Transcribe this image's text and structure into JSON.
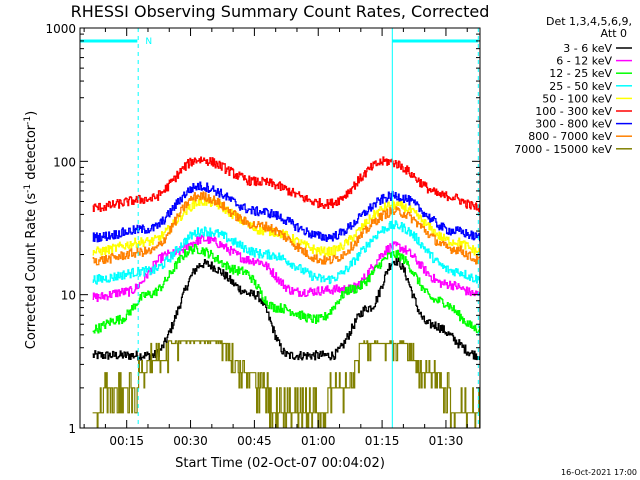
{
  "chart_data": {
    "type": "line",
    "title": "RHESSI Observing Summary Count Rates, Corrected",
    "xlabel": "Start Time (02-Oct-07 00:04:02)",
    "ylabel": "Corrected Count Rate",
    "yscale": "log",
    "ylim": [
      1,
      1000
    ],
    "xlim_minutes": [
      4.03,
      98
    ],
    "x_ticks": [
      {
        "t": 15,
        "label": "00:15"
      },
      {
        "t": 30,
        "label": "00:30"
      },
      {
        "t": 45,
        "label": "00:45"
      },
      {
        "t": 60,
        "label": "01:00"
      },
      {
        "t": 75,
        "label": "01:15"
      },
      {
        "t": 90,
        "label": "01:30"
      }
    ],
    "y_ticks": [
      {
        "v": 1,
        "label": "1"
      },
      {
        "v": 10,
        "label": "10"
      },
      {
        "v": 100,
        "label": "100"
      },
      {
        "v": 1000,
        "label": "1000"
      }
    ],
    "legend_title_line1": "Det 1,3,4,5,6,9,",
    "legend_title_line2": "Att 0",
    "legend_position": "top-right, outside plot",
    "series": [
      {
        "name": "3 - 6 keV",
        "color": "#000000",
        "t": [
          7,
          21,
          33,
          45,
          53,
          63,
          72,
          78,
          86,
          98
        ],
        "values": [
          3.5,
          3.5,
          17,
          10,
          3.5,
          3.5,
          8,
          18,
          6,
          3.5
        ]
      },
      {
        "name": "6 - 12 keV",
        "color": "#ff00ff",
        "t": [
          7,
          15,
          25,
          33,
          45,
          55,
          67,
          78,
          90,
          98
        ],
        "values": [
          9.5,
          10.5,
          20,
          26,
          18,
          10.5,
          11,
          23,
          12,
          10
        ]
      },
      {
        "name": "12 - 25 keV",
        "color": "#00ff00",
        "t": [
          7,
          13,
          20,
          31,
          42,
          50,
          60,
          68,
          78,
          88,
          98
        ],
        "values": [
          5.5,
          6.5,
          10,
          22,
          15,
          8,
          6.5,
          11,
          20,
          9,
          5.5
        ]
      },
      {
        "name": "25 - 50 keV",
        "color": "#00ffff",
        "t": [
          7,
          20,
          33,
          48,
          62,
          78,
          92,
          98
        ],
        "values": [
          13,
          15,
          30,
          20,
          13,
          33,
          15,
          13
        ]
      },
      {
        "name": "50 - 100 keV",
        "color": "#ffff00",
        "t": [
          7,
          20,
          33,
          48,
          62,
          78,
          92,
          98
        ],
        "values": [
          21,
          25,
          50,
          30,
          21,
          47,
          25,
          21
        ]
      },
      {
        "name": "100 - 300 keV",
        "color": "#ff0000",
        "t": [
          7,
          20,
          32,
          46,
          62,
          76,
          90,
          98
        ],
        "values": [
          45,
          52,
          103,
          70,
          48,
          100,
          55,
          45
        ]
      },
      {
        "name": "300 - 800 keV",
        "color": "#0000ff",
        "t": [
          7,
          20,
          32,
          46,
          62,
          78,
          92,
          98
        ],
        "values": [
          27,
          31,
          65,
          42,
          27,
          55,
          30,
          27
        ]
      },
      {
        "name": "800 - 7000 keV",
        "color": "#ff8000",
        "t": [
          7,
          20,
          32,
          46,
          62,
          78,
          92,
          98
        ],
        "values": [
          18,
          21,
          55,
          33,
          18,
          42,
          22,
          18
        ]
      },
      {
        "name": "7000 - 15000 keV",
        "color": "#808000",
        "t": [
          7,
          15,
          22,
          28,
          36,
          42,
          52,
          58,
          66,
          71,
          78,
          86,
          94,
          98
        ],
        "values": [
          1.5,
          2,
          3.2,
          4.5,
          4.5,
          2.8,
          1.3,
          1.3,
          2,
          4.3,
          4.3,
          2.6,
          1.3,
          1.3
        ]
      }
    ],
    "vertical_markers_cyan": [
      {
        "t": 4.03,
        "style": "solid"
      },
      {
        "t": 17.7,
        "style": "dashed"
      },
      {
        "t": 77.4,
        "style": "solid"
      },
      {
        "t": 97.6,
        "style": "dashed"
      }
    ],
    "night_bars_cyan": [
      {
        "t0": 4.03,
        "t1": 17.5
      },
      {
        "t0": 77.4,
        "t1": 97.6
      }
    ],
    "night_bar_label": "N"
  },
  "footer_timestamp": "16-Oct-2021 17:00"
}
